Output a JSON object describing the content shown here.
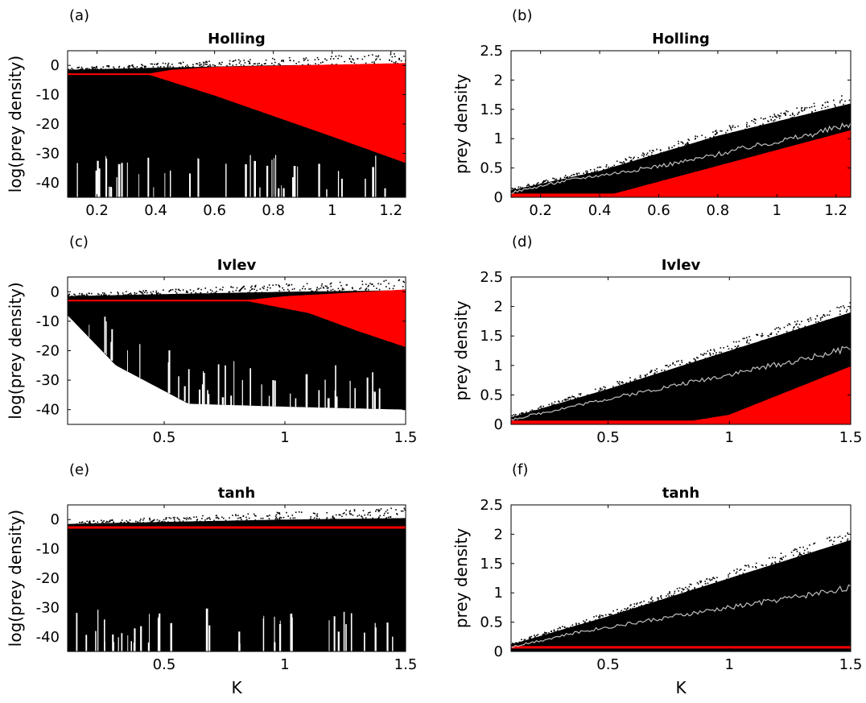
{
  "figure": {
    "xlabel": "K",
    "panels_note": "six panels"
  },
  "chart_data": [
    {
      "id": "a",
      "panel_label": "(a)",
      "type": "scatter",
      "title": "Holling",
      "xlabel": "",
      "ylabel": "log(prey density)",
      "xlim": [
        0.1,
        1.25
      ],
      "ylim": [
        -45,
        5
      ],
      "xticks": [
        0.2,
        0.4,
        0.6,
        0.8,
        1,
        1.2
      ],
      "xtick_labels": [
        "0.2",
        "0.4",
        "0.6",
        "0.8",
        "1",
        "1.2"
      ],
      "yticks": [
        0,
        -10,
        -20,
        -30,
        -40
      ],
      "ytick_labels": [
        "0",
        "-10",
        "-20",
        "-30",
        "-40"
      ],
      "grid": false,
      "series": [
        {
          "color": "#000000",
          "kind": "upper envelope",
          "x": [
            0.1,
            0.4,
            0.8,
            1.25
          ],
          "values": [
            -1.5,
            -0.8,
            0,
            0.5
          ]
        },
        {
          "color": "#000000",
          "kind": "lower envelope",
          "x": [
            0.1,
            0.4,
            0.8,
            1.25
          ],
          "values": [
            -45,
            -45,
            -45,
            -45
          ]
        },
        {
          "color": "#ff0000",
          "kind": "upper",
          "x": [
            0.1,
            0.38,
            0.45,
            0.6,
            1.25
          ],
          "values": [
            -3,
            -3,
            -1.8,
            -0.8,
            0.5
          ]
        },
        {
          "color": "#ff0000",
          "kind": "lower",
          "x": [
            0.1,
            0.38,
            0.6,
            0.8,
            1.0,
            1.25
          ],
          "values": [
            -3,
            -3,
            -10,
            -17,
            -24,
            -33
          ]
        }
      ]
    },
    {
      "id": "b",
      "panel_label": "(b)",
      "type": "scatter",
      "title": "Holling",
      "xlabel": "",
      "ylabel": "prey density",
      "xlim": [
        0.1,
        1.25
      ],
      "ylim": [
        0,
        2.5
      ],
      "xticks": [
        0.2,
        0.4,
        0.6,
        0.8,
        1,
        1.2
      ],
      "xtick_labels": [
        "0.2",
        "0.4",
        "0.6",
        "0.8",
        "1",
        "1.2"
      ],
      "yticks": [
        0,
        0.5,
        1,
        1.5,
        2,
        2.5
      ],
      "ytick_labels": [
        "0",
        "0.5",
        "1",
        "1.5",
        "2",
        "2.5"
      ],
      "grid": false,
      "series": [
        {
          "color": "#000000",
          "kind": "upper envelope",
          "x": [
            0.1,
            0.4,
            0.8,
            1.25
          ],
          "values": [
            0.12,
            0.45,
            1.05,
            1.6
          ]
        },
        {
          "color": "#c0c0c0",
          "kind": "mean",
          "x": [
            0.1,
            0.3,
            0.5,
            0.7,
            0.9,
            1.1,
            1.25
          ],
          "values": [
            0.08,
            0.3,
            0.45,
            0.62,
            0.85,
            1.05,
            1.25
          ]
        },
        {
          "color": "#ff0000",
          "kind": "upper",
          "x": [
            0.1,
            0.45,
            1.25
          ],
          "values": [
            0.05,
            0.05,
            1.13
          ]
        },
        {
          "color": "#ff0000",
          "kind": "lower",
          "x": [
            0.1,
            1.25
          ],
          "values": [
            0,
            0
          ]
        }
      ]
    },
    {
      "id": "c",
      "panel_label": "(c)",
      "type": "scatter",
      "title": "Ivlev",
      "xlabel": "",
      "ylabel": "log(prey density)",
      "xlim": [
        0.1,
        1.5
      ],
      "ylim": [
        -45,
        5
      ],
      "xticks": [
        0.5,
        1,
        1.5
      ],
      "xtick_labels": [
        "0.5",
        "1",
        "1.5"
      ],
      "yticks": [
        0,
        -10,
        -20,
        -30,
        -40
      ],
      "ytick_labels": [
        "0",
        "-10",
        "-20",
        "-30",
        "-40"
      ],
      "grid": false,
      "series": [
        {
          "color": "#000000",
          "kind": "upper envelope",
          "x": [
            0.1,
            0.5,
            1.0,
            1.5
          ],
          "values": [
            -1.5,
            -0.8,
            0,
            0.5
          ]
        },
        {
          "color": "#000000",
          "kind": "lower envelope",
          "x": [
            0.1,
            0.3,
            0.6,
            1.0,
            1.5
          ],
          "values": [
            -8,
            -25,
            -38,
            -39,
            -40
          ]
        },
        {
          "color": "#ff0000",
          "kind": "upper",
          "x": [
            0.1,
            0.85,
            1.0,
            1.5
          ],
          "values": [
            -3,
            -3,
            -1.8,
            0.5
          ]
        },
        {
          "color": "#ff0000",
          "kind": "lower",
          "x": [
            0.1,
            0.85,
            1.1,
            1.3,
            1.5
          ],
          "values": [
            -3,
            -3,
            -7,
            -13,
            -18.5
          ]
        }
      ]
    },
    {
      "id": "d",
      "panel_label": "(d)",
      "type": "scatter",
      "title": "Ivlev",
      "xlabel": "",
      "ylabel": "prey density",
      "xlim": [
        0.1,
        1.5
      ],
      "ylim": [
        0,
        2.5
      ],
      "xticks": [
        0.5,
        1,
        1.5
      ],
      "xtick_labels": [
        "0.5",
        "1",
        "1.5"
      ],
      "yticks": [
        0,
        0.5,
        1,
        1.5,
        2,
        2.5
      ],
      "ytick_labels": [
        "0",
        "0.5",
        "1",
        "1.5",
        "2",
        "2.5"
      ],
      "grid": false,
      "series": [
        {
          "color": "#000000",
          "kind": "upper envelope",
          "x": [
            0.1,
            0.5,
            1.0,
            1.5
          ],
          "values": [
            0.12,
            0.6,
            1.25,
            1.9
          ]
        },
        {
          "color": "#c0c0c0",
          "kind": "mean",
          "x": [
            0.1,
            0.4,
            0.7,
            1.0,
            1.3,
            1.5
          ],
          "values": [
            0.08,
            0.35,
            0.6,
            0.85,
            1.1,
            1.3
          ]
        },
        {
          "color": "#ff0000",
          "kind": "upper",
          "x": [
            0.1,
            0.85,
            1.0,
            1.5
          ],
          "values": [
            0.05,
            0.05,
            0.15,
            0.97
          ]
        },
        {
          "color": "#ff0000",
          "kind": "lower",
          "x": [
            0.1,
            1.5
          ],
          "values": [
            0,
            0
          ]
        }
      ]
    },
    {
      "id": "e",
      "panel_label": "(e)",
      "type": "scatter",
      "title": "tanh",
      "xlabel": "K",
      "ylabel": "log(prey density)",
      "xlim": [
        0.1,
        1.5
      ],
      "ylim": [
        -45,
        5
      ],
      "xticks": [
        0.5,
        1,
        1.5
      ],
      "xtick_labels": [
        "0.5",
        "1",
        "1.5"
      ],
      "yticks": [
        0,
        -10,
        -20,
        -30,
        -40
      ],
      "ytick_labels": [
        "0",
        "-10",
        "-20",
        "-30",
        "-40"
      ],
      "grid": false,
      "series": [
        {
          "color": "#000000",
          "kind": "upper envelope",
          "x": [
            0.1,
            0.5,
            1.0,
            1.5
          ],
          "values": [
            -1.5,
            -0.8,
            0,
            0.5
          ]
        },
        {
          "color": "#000000",
          "kind": "lower envelope",
          "x": [
            0.1,
            1.5
          ],
          "values": [
            -45,
            -45
          ]
        },
        {
          "color": "#ff0000",
          "kind": "line",
          "x": [
            0.1,
            1.5
          ],
          "values": [
            -2.7,
            -2.7
          ]
        }
      ]
    },
    {
      "id": "f",
      "panel_label": "(f)",
      "type": "scatter",
      "title": "tanh",
      "xlabel": "K",
      "ylabel": "prey density",
      "xlim": [
        0.1,
        1.5
      ],
      "ylim": [
        0,
        2.5
      ],
      "xticks": [
        0.5,
        1,
        1.5
      ],
      "xtick_labels": [
        "0.5",
        "1",
        "1.5"
      ],
      "yticks": [
        0,
        0.5,
        1,
        1.5,
        2,
        2.5
      ],
      "ytick_labels": [
        "0",
        "0.5",
        "1",
        "1.5",
        "2",
        "2.5"
      ],
      "grid": false,
      "series": [
        {
          "color": "#000000",
          "kind": "upper envelope",
          "x": [
            0.1,
            0.5,
            1.0,
            1.5
          ],
          "values": [
            0.12,
            0.6,
            1.25,
            1.9
          ]
        },
        {
          "color": "#c0c0c0",
          "kind": "mean",
          "x": [
            0.1,
            0.4,
            0.7,
            1.0,
            1.3,
            1.5
          ],
          "values": [
            0.08,
            0.35,
            0.55,
            0.75,
            0.95,
            1.1
          ]
        },
        {
          "color": "#ff0000",
          "kind": "line",
          "x": [
            0.1,
            1.5
          ],
          "values": [
            0.07,
            0.07
          ]
        }
      ]
    }
  ]
}
